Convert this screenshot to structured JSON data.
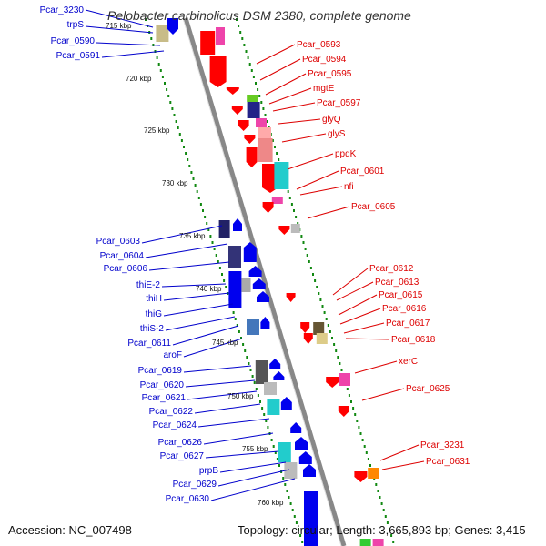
{
  "title": "Pelobacter carbinolicus DSM 2380, complete genome",
  "accession_text": "Accession: NC_007498",
  "summary_text": "Topology: circular; Length: 3,665,893 bp; Genes: 3,415",
  "colors": {
    "backbone": "#888888",
    "tick": "#118811",
    "left_label": "#0000cc",
    "right_label": "#dd0000",
    "blue": "#0000ee",
    "red": "#ff0000",
    "pink": "#ee44aa",
    "cyan": "#22cccc"
  },
  "kbp_labels": [
    "715 kbp",
    "720 kbp",
    "725 kbp",
    "730 kbp",
    "735 kbp",
    "740 kbp",
    "745 kbp",
    "750 kbp",
    "755 kbp",
    "760 kbp"
  ],
  "left_genes": [
    "Pcar_3230",
    "trpS",
    "Pcar_0590",
    "Pcar_0591",
    "Pcar_0603",
    "Pcar_0604",
    "Pcar_0606",
    "thiE-2",
    "thiH",
    "thiG",
    "thiS-2",
    "Pcar_0611",
    "aroF",
    "Pcar_0619",
    "Pcar_0620",
    "Pcar_0621",
    "Pcar_0622",
    "Pcar_0624",
    "Pcar_0626",
    "Pcar_0627",
    "prpB",
    "Pcar_0629",
    "Pcar_0630"
  ],
  "right_genes": [
    "Pcar_0593",
    "Pcar_0594",
    "Pcar_0595",
    "mgtE",
    "Pcar_0597",
    "glyQ",
    "glyS",
    "ppdK",
    "Pcar_0601",
    "nfi",
    "Pcar_0605",
    "Pcar_0612",
    "Pcar_0613",
    "Pcar_0615",
    "Pcar_0616",
    "Pcar_0617",
    "Pcar_0618",
    "xerC",
    "Pcar_0625",
    "Pcar_3231",
    "Pcar_0631"
  ]
}
